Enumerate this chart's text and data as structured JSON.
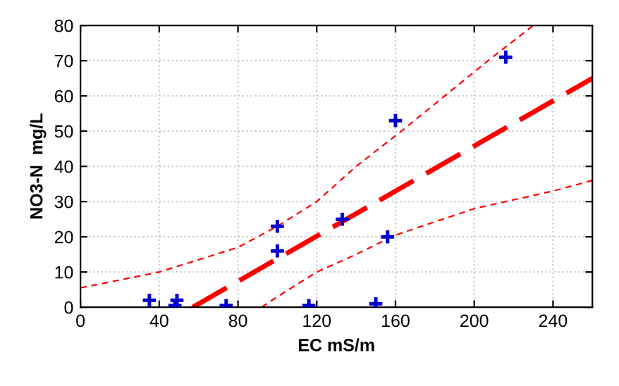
{
  "chart_data": {
    "type": "scatter",
    "xlabel": "EC mS/m",
    "ylabel": "NO3-N  mg/L",
    "xlim": [
      0,
      260
    ],
    "ylim": [
      0,
      80
    ],
    "xticks": [
      0,
      40,
      80,
      120,
      160,
      200,
      240
    ],
    "yticks": [
      0,
      10,
      20,
      30,
      40,
      50,
      60,
      70,
      80
    ],
    "grid": true,
    "series": [
      {
        "color": "#0000cc",
        "marker": "cross",
        "x": [
          35,
          48,
          49,
          74,
          100,
          100,
          116,
          133,
          150,
          156,
          160,
          216
        ],
        "values": [
          2,
          0.5,
          2,
          0.5,
          23,
          16,
          0.5,
          25,
          1,
          20,
          53,
          71
        ]
      },
      {
        "type": "line",
        "color": "#ff0000",
        "line_style": "dashed",
        "x": [
          57,
          260
        ],
        "values": [
          0,
          65
        ]
      },
      {
        "type": "line",
        "color": "#ff0000",
        "line_style": "dashed",
        "x": [
          0,
          40,
          80,
          100,
          120,
          140,
          163,
          185,
          207,
          230
        ],
        "values": [
          5.5,
          10,
          17,
          23,
          30,
          40,
          50,
          60,
          70,
          80
        ]
      },
      {
        "type": "line",
        "color": "#ff0000",
        "line_style": "dashed",
        "x": [
          92,
          100,
          120,
          140,
          160,
          200,
          240,
          260
        ],
        "values": [
          0,
          3,
          10,
          15,
          20.5,
          28,
          33,
          36
        ]
      }
    ]
  }
}
